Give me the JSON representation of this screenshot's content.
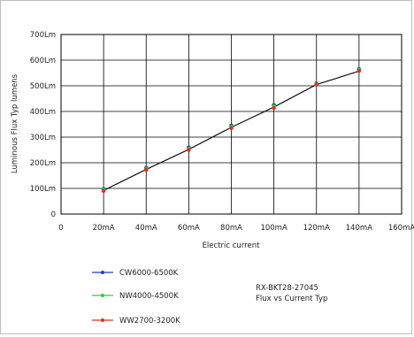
{
  "chart_data": {
    "type": "line",
    "xlabel": "Electric current",
    "ylabel": "Luminous Flux Typ lumens",
    "x_ticks": [
      "0",
      "20mA",
      "40mA",
      "60mA",
      "80mA",
      "100mA",
      "120mA",
      "140mA",
      "160mA"
    ],
    "y_ticks": [
      "0",
      "100Lm",
      "200Lm",
      "300Lm",
      "400Lm",
      "500Lm",
      "600Lm",
      "700Lm"
    ],
    "xlim": [
      0,
      160
    ],
    "ylim": [
      0,
      700
    ],
    "grid": true,
    "x": [
      20,
      40,
      60,
      80,
      100,
      120,
      140
    ],
    "series": [
      {
        "name": "CW6000-6500K",
        "color": "#1f3fbf",
        "values": [
          98,
          180,
          260,
          345,
          425,
          510,
          565
        ]
      },
      {
        "name": "NW4000-4500K",
        "color": "#33cc33",
        "values": [
          95,
          176,
          255,
          340,
          420,
          508,
          562
        ]
      },
      {
        "name": "WW2700-3200K",
        "color": "#e03020",
        "values": [
          90,
          172,
          250,
          335,
          413,
          505,
          558
        ]
      }
    ],
    "trend_values": [
      92,
      174,
      252,
      338,
      417,
      505,
      557
    ],
    "trend_color": "#111111",
    "legend_position": "bottom-left",
    "annotation": {
      "line1": "RX-BKT28-27045",
      "line2": "Flux vs Current Typ"
    }
  }
}
